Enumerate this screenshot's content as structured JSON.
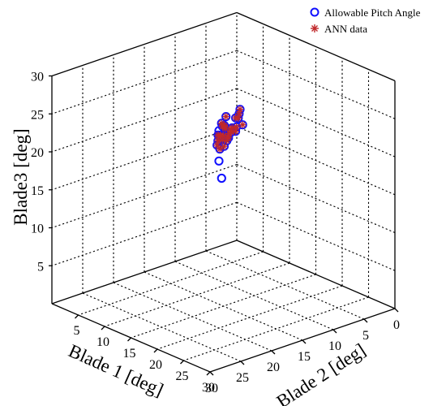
{
  "chart_data": {
    "type": "scatter",
    "projection": "3d",
    "title": "",
    "xlabel": "Blade 1 [deg]",
    "ylabel": "Blade 2 [deg]",
    "zlabel": "Blade3 [deg]",
    "xlim": [
      0,
      30
    ],
    "ylim": [
      0,
      30
    ],
    "zlim": [
      0,
      30
    ],
    "x_ticks": [
      "0",
      "5",
      "10",
      "15",
      "20",
      "25",
      "30"
    ],
    "y_ticks": [
      "5",
      "10",
      "15",
      "20",
      "25",
      "30"
    ],
    "z_ticks": [
      "5",
      "10",
      "15",
      "20",
      "25",
      "30"
    ],
    "grid": true,
    "legend_position": "top-right",
    "series": [
      {
        "name": "Allowable Pitch Angle",
        "marker": "circle",
        "color": "#1010ff",
        "points": [
          [
            17,
            17,
            18
          ],
          [
            19,
            19,
            23
          ],
          [
            20,
            20,
            22
          ],
          [
            18,
            19,
            27
          ],
          [
            19,
            20,
            26
          ],
          [
            20,
            21,
            27
          ],
          [
            21,
            21,
            26
          ],
          [
            19,
            22,
            28
          ],
          [
            20,
            20,
            26
          ],
          [
            22,
            23,
            28
          ],
          [
            23,
            24,
            29
          ],
          [
            22,
            24,
            27
          ],
          [
            24,
            25,
            28
          ],
          [
            23,
            25,
            27
          ],
          [
            20,
            24,
            30
          ],
          [
            21,
            25,
            30
          ],
          [
            22,
            26,
            30
          ],
          [
            23,
            26,
            29
          ],
          [
            24,
            27,
            29
          ],
          [
            25,
            27,
            30
          ],
          [
            26,
            27,
            29
          ],
          [
            25,
            28,
            30
          ],
          [
            23,
            28,
            30
          ],
          [
            24,
            28,
            30
          ],
          [
            25,
            29,
            30
          ],
          [
            26,
            29,
            30
          ],
          [
            27,
            29,
            30
          ],
          [
            26,
            28,
            28
          ],
          [
            27,
            28,
            29
          ],
          [
            28,
            29,
            29
          ],
          [
            27,
            30,
            30
          ],
          [
            28,
            30,
            30
          ]
        ]
      },
      {
        "name": "ANN data",
        "marker": "asterisk",
        "color": "#c0282a",
        "points": [
          [
            19,
            19,
            23
          ],
          [
            18,
            19,
            27
          ],
          [
            19,
            20,
            26
          ],
          [
            20,
            21,
            27
          ],
          [
            21,
            21,
            26
          ],
          [
            19,
            22,
            28
          ],
          [
            22,
            23,
            28
          ],
          [
            23,
            24,
            29
          ],
          [
            22,
            24,
            27
          ],
          [
            24,
            25,
            28
          ],
          [
            23,
            25,
            27
          ],
          [
            20,
            24,
            30
          ],
          [
            21,
            25,
            30
          ],
          [
            22,
            26,
            30
          ],
          [
            23,
            26,
            29
          ],
          [
            24,
            27,
            29
          ],
          [
            25,
            27,
            30
          ],
          [
            26,
            27,
            29
          ],
          [
            25,
            28,
            30
          ],
          [
            23,
            28,
            30
          ],
          [
            24,
            28,
            30
          ],
          [
            25,
            29,
            30
          ],
          [
            26,
            29,
            30
          ],
          [
            27,
            29,
            30
          ],
          [
            26,
            28,
            28
          ],
          [
            27,
            28,
            29
          ],
          [
            28,
            29,
            29
          ],
          [
            27,
            30,
            30
          ],
          [
            28,
            30,
            30
          ]
        ]
      }
    ]
  }
}
